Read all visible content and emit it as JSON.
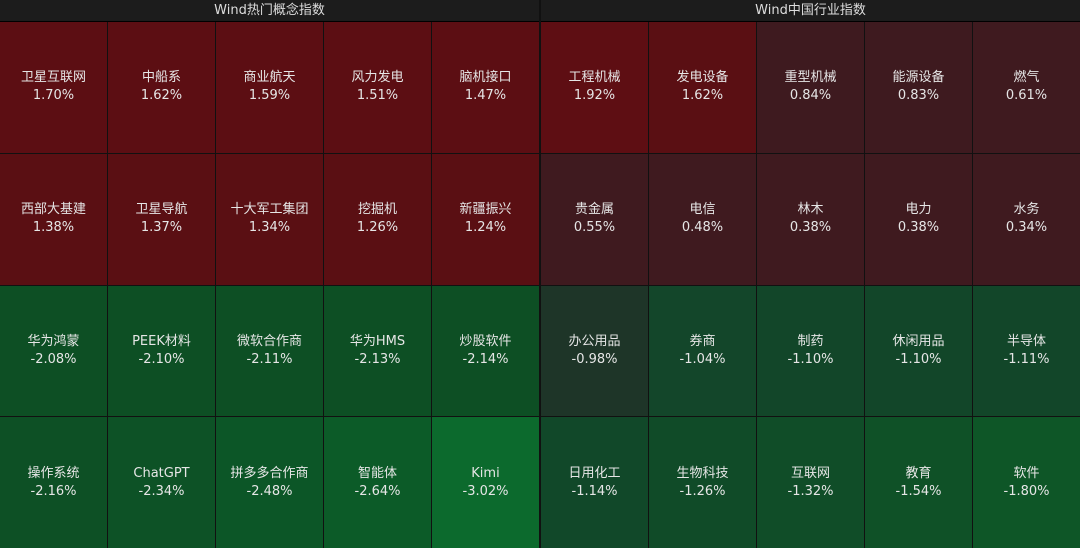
{
  "chart_data": [
    {
      "type": "heatmap",
      "title": "Wind热门概念指数",
      "categories": [
        "卫星互联网",
        "中船系",
        "商业航天",
        "风力发电",
        "脑机接口",
        "西部大基建",
        "卫星导航",
        "十大军工集团",
        "挖掘机",
        "新疆振兴",
        "华为鸿蒙",
        "PEEK材料",
        "微软合作商",
        "华为HMS",
        "炒股软件",
        "操作系统",
        "ChatGPT",
        "拼多多合作商",
        "智能体",
        "Kimi"
      ],
      "values": [
        1.7,
        1.62,
        1.59,
        1.51,
        1.47,
        1.38,
        1.37,
        1.34,
        1.26,
        1.24,
        -2.08,
        -2.1,
        -2.11,
        -2.13,
        -2.14,
        -2.16,
        -2.34,
        -2.48,
        -2.64,
        -3.02
      ],
      "value_labels": [
        "1.70%",
        "1.62%",
        "1.59%",
        "1.51%",
        "1.47%",
        "1.38%",
        "1.37%",
        "1.34%",
        "1.26%",
        "1.24%",
        "-2.08%",
        "-2.10%",
        "-2.11%",
        "-2.13%",
        "-2.14%",
        "-2.16%",
        "-2.34%",
        "-2.48%",
        "-2.64%",
        "-3.02%"
      ],
      "colors": [
        "#5c0e13",
        "#5c0e13",
        "#5c0e13",
        "#5c0e13",
        "#5c0e13",
        "#5a0f13",
        "#5a0f13",
        "#5a0f13",
        "#5a0f13",
        "#5a0f13",
        "#0d4f24",
        "#0d4f24",
        "#0d4f24",
        "#0d4f24",
        "#0d4f24",
        "#0d5025",
        "#0d5226",
        "#0c5627",
        "#0c5b28",
        "#0c6a2d"
      ]
    },
    {
      "type": "heatmap",
      "title": "Wind中国行业指数",
      "categories": [
        "工程机械",
        "发电设备",
        "重型机械",
        "能源设备",
        "燃气",
        "贵金属",
        "电信",
        "林木",
        "电力",
        "水务",
        "办公用品",
        "券商",
        "制药",
        "休闲用品",
        "半导体",
        "日用化工",
        "生物科技",
        "互联网",
        "教育",
        "软件"
      ],
      "values": [
        1.92,
        1.62,
        0.84,
        0.83,
        0.61,
        0.55,
        0.48,
        0.38,
        0.38,
        0.34,
        -0.98,
        -1.04,
        -1.1,
        -1.1,
        -1.11,
        -1.14,
        -1.26,
        -1.32,
        -1.54,
        -1.8
      ],
      "value_labels": [
        "1.92%",
        "1.62%",
        "0.84%",
        "0.83%",
        "0.61%",
        "0.55%",
        "0.48%",
        "0.38%",
        "0.38%",
        "0.34%",
        "-0.98%",
        "-1.04%",
        "-1.10%",
        "-1.10%",
        "-1.11%",
        "-1.14%",
        "-1.26%",
        "-1.32%",
        "-1.54%",
        "-1.80%"
      ],
      "colors": [
        "#5e0e13",
        "#5a0f13",
        "#3e1a1f",
        "#3e1a1f",
        "#3f1a1f",
        "#3f1a1f",
        "#3f1a1f",
        "#3f1a1f",
        "#3f1a1f",
        "#3f1a1f",
        "#1e3528",
        "#13462a",
        "#124629",
        "#124629",
        "#124629",
        "#114829",
        "#104b28",
        "#104d28",
        "#0f5127",
        "#0e5627"
      ]
    }
  ]
}
